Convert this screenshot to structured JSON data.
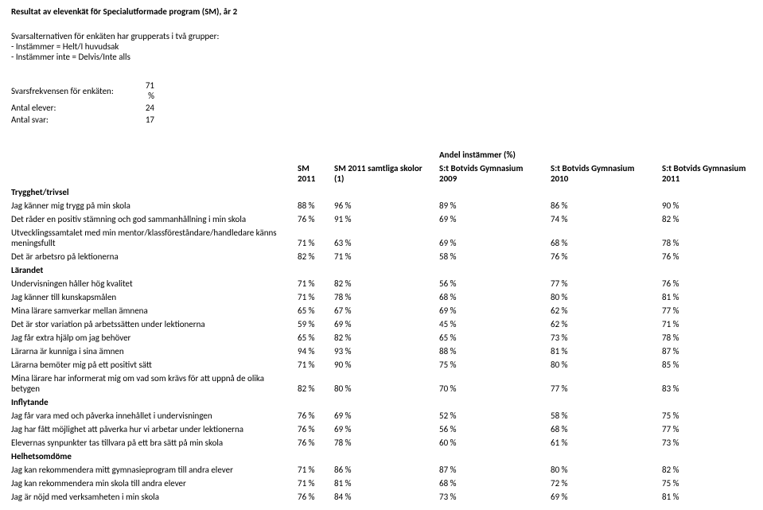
{
  "title": "Resultat av elevenkät för Specialutformade program (SM), år 2",
  "intro": [
    "Svarsalternativen för enkäten har grupperats i två grupper:",
    "- Instämmer = Helt/I huvudsak",
    "- Instämmer inte = Delvis/Inte alls"
  ],
  "stats": [
    {
      "label": "Svarsfrekvensen för enkäten:",
      "value": "71 %"
    },
    {
      "label": "Antal elever:",
      "value": "24"
    },
    {
      "label": "Antal svar:",
      "value": "17"
    }
  ],
  "super_header": "Andel instämmer (%)",
  "columns": [
    {
      "line1": "SM",
      "line2": "2011"
    },
    {
      "line1": "SM 2011 samtliga skolor",
      "line2": "(1)"
    },
    {
      "line1": "S:t Botvids Gymnasium",
      "line2": "2009"
    },
    {
      "line1": "S:t Botvids Gymnasium",
      "line2": "2010"
    },
    {
      "line1": "S:t Botvids Gymnasium",
      "line2": "2011"
    }
  ],
  "sections": [
    {
      "name": "Trygghet/trivsel",
      "rows": [
        {
          "q": "Jag känner mig trygg på min skola",
          "v": [
            "88 %",
            "96 %",
            "89 %",
            "86 %",
            "90 %"
          ]
        },
        {
          "q": "Det råder en positiv stämning och god sammanhållning i min skola",
          "v": [
            "76 %",
            "91 %",
            "69 %",
            "74 %",
            "82 %"
          ]
        },
        {
          "q": "Utvecklingssamtalet med min mentor/klassföreståndare/handledare känns meningsfullt",
          "v": [
            "71 %",
            "63 %",
            "69 %",
            "68 %",
            "78 %"
          ]
        },
        {
          "q": "Det är arbetsro på lektionerna",
          "v": [
            "82 %",
            "71 %",
            "58 %",
            "76 %",
            "76 %"
          ]
        }
      ]
    },
    {
      "name": "Lärandet",
      "rows": [
        {
          "q": "Undervisningen håller hög kvalitet",
          "v": [
            "71 %",
            "82 %",
            "56 %",
            "77 %",
            "76 %"
          ]
        },
        {
          "q": "Jag känner till kunskapsmålen",
          "v": [
            "71 %",
            "78 %",
            "68 %",
            "80 %",
            "81 %"
          ]
        },
        {
          "q": "Mina lärare samverkar mellan ämnena",
          "v": [
            "65 %",
            "67 %",
            "69 %",
            "62 %",
            "77 %"
          ]
        },
        {
          "q": "Det är stor variation på arbetssätten under lektionerna",
          "v": [
            "59 %",
            "69 %",
            "45 %",
            "62 %",
            "71 %"
          ]
        },
        {
          "q": "Jag får extra hjälp om jag behöver",
          "v": [
            "65 %",
            "82 %",
            "65 %",
            "73 %",
            "78 %"
          ]
        },
        {
          "q": "Lärarna är kunniga i sina ämnen",
          "v": [
            "94 %",
            "93 %",
            "88 %",
            "81 %",
            "87 %"
          ]
        },
        {
          "q": "Lärarna bemöter mig på ett positivt sätt",
          "v": [
            "71 %",
            "90 %",
            "75 %",
            "80 %",
            "85 %"
          ]
        },
        {
          "q": "Mina lärare har informerat mig om vad som krävs för att uppnå de olika betygen",
          "v": [
            "82 %",
            "80 %",
            "70 %",
            "77 %",
            "83 %"
          ]
        }
      ]
    },
    {
      "name": "Inflytande",
      "rows": [
        {
          "q": "Jag får vara med och påverka innehållet i undervisningen",
          "v": [
            "76 %",
            "69 %",
            "52 %",
            "58 %",
            "75 %"
          ]
        },
        {
          "q": "Jag har fått möjlighet att påverka hur vi arbetar under lektionerna",
          "v": [
            "76 %",
            "69 %",
            "56 %",
            "68 %",
            "77 %"
          ]
        },
        {
          "q": "Elevernas synpunkter tas tillvara på ett bra sätt på min skola",
          "v": [
            "76 %",
            "78 %",
            "60 %",
            "61 %",
            "73 %"
          ]
        }
      ]
    },
    {
      "name": "Helhetsomdöme",
      "rows": [
        {
          "q": "Jag kan rekommendera mitt gymnasieprogram till andra elever",
          "v": [
            "71 %",
            "86 %",
            "87 %",
            "80 %",
            "82 %"
          ]
        },
        {
          "q": "Jag kan rekommendera min skola till andra elever",
          "v": [
            "71 %",
            "81 %",
            "68 %",
            "72 %",
            "75 %"
          ]
        },
        {
          "q": "Jag är nöjd med verksamheten i min skola",
          "v": [
            "76 %",
            "84 %",
            "73 %",
            "69 %",
            "81 %"
          ]
        }
      ]
    }
  ]
}
